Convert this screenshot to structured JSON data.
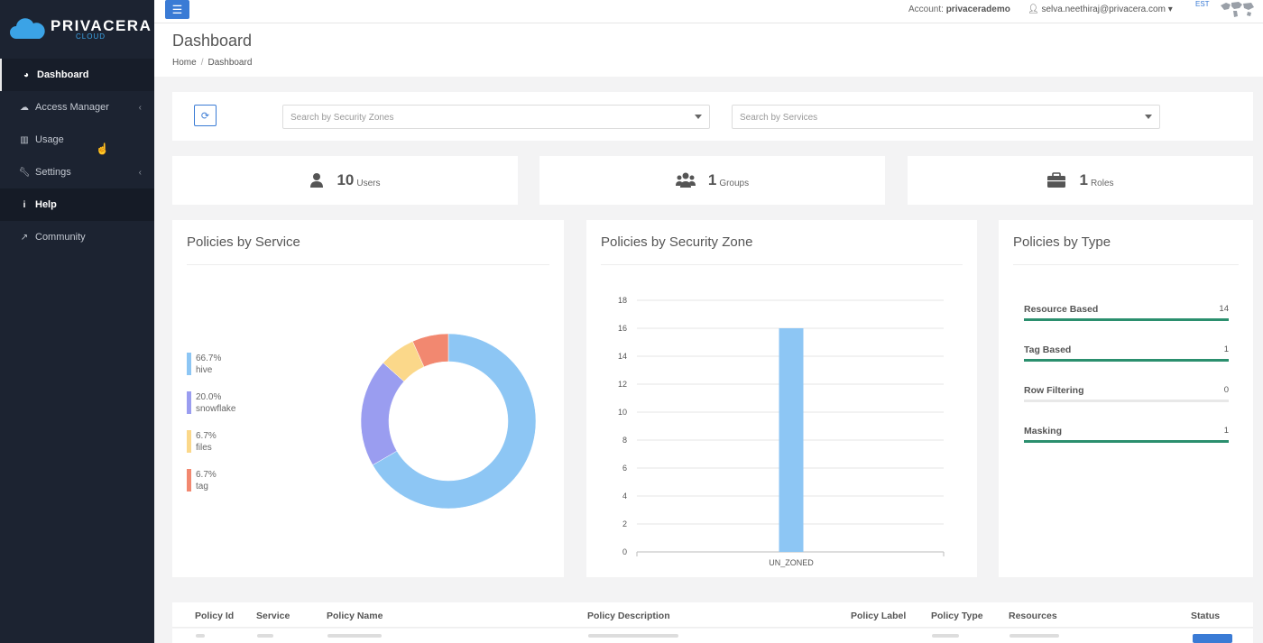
{
  "brand": {
    "name": "PRIVACERA",
    "sub": "CLOUD"
  },
  "sidebar": {
    "items": [
      {
        "label": "Dashboard",
        "icon": "dashboard-icon"
      },
      {
        "label": "Access Manager",
        "icon": "cloud-icon"
      },
      {
        "label": "Usage",
        "icon": "bar-chart-icon"
      },
      {
        "label": "Settings",
        "icon": "wrench-icon"
      },
      {
        "label": "Help",
        "icon": "info-icon"
      },
      {
        "label": "Community",
        "icon": "external-link-icon"
      }
    ]
  },
  "header": {
    "account_label": "Account:",
    "account_name": "privacerademo",
    "user_email": "selva.neethiraj@privacera.com",
    "timezone": "EST"
  },
  "page": {
    "title": "Dashboard",
    "breadcrumb": [
      "Home",
      "Dashboard"
    ]
  },
  "filters": {
    "zones_placeholder": "Search by Security Zones",
    "services_placeholder": "Search by Services"
  },
  "stats": [
    {
      "value": "10",
      "label": "Users"
    },
    {
      "value": "1",
      "label": "Groups"
    },
    {
      "value": "1",
      "label": "Roles"
    }
  ],
  "panels": {
    "service_title": "Policies by Service",
    "zone_title": "Policies by Security Zone",
    "type_title": "Policies by Type"
  },
  "policy_types": [
    {
      "name": "Resource Based",
      "value": "14",
      "fill": 1.0
    },
    {
      "name": "Tag Based",
      "value": "1",
      "fill": 1.0
    },
    {
      "name": "Row Filtering",
      "value": "0",
      "fill": 0.0
    },
    {
      "name": "Masking",
      "value": "1",
      "fill": 1.0
    }
  ],
  "colors": {
    "hive": "#8dc6f4",
    "snowflake": "#9a9df0",
    "files": "#fbd88a",
    "tag": "#f28870",
    "bar": "#8dc6f4",
    "accent": "#3a7bd5",
    "type_fill": "#2b8f6e"
  },
  "chart_data": [
    {
      "type": "pie",
      "title": "Policies by Service",
      "categories": [
        "hive",
        "snowflake",
        "files",
        "tag"
      ],
      "values": [
        66.7,
        20.0,
        6.7,
        6.7
      ],
      "labels": [
        "66.7%",
        "20.0%",
        "6.7%",
        "6.7%"
      ],
      "donut": true,
      "legend": "left"
    },
    {
      "type": "bar",
      "title": "Policies by Security Zone",
      "categories": [
        "UN_ZONED"
      ],
      "values": [
        16
      ],
      "ylim": [
        0,
        18
      ],
      "yticks": [
        0,
        2,
        4,
        6,
        8,
        10,
        12,
        14,
        16,
        18
      ],
      "grid": true
    }
  ],
  "table": {
    "columns": [
      "Policy Id",
      "Service",
      "Policy Name",
      "Policy Description",
      "Policy Label",
      "Policy Type",
      "Resources",
      "Status"
    ]
  }
}
